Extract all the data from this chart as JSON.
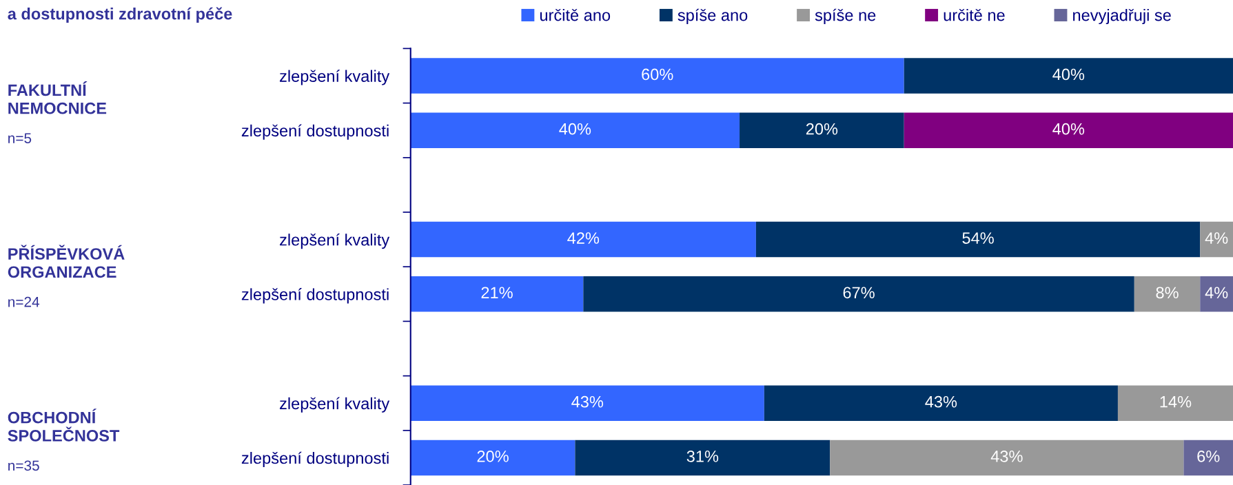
{
  "chart_data": {
    "type": "bar",
    "orientation": "horizontal",
    "stacked": true,
    "legend": "top",
    "grid": false,
    "title": "a dostupnosti zdravotní péče",
    "categories": [
      "zlepšení kvality",
      "zlepšení dostupnosti",
      null,
      "zlepšení kvality",
      "zlepšení dostupnosti",
      null,
      "zlepšení kvality",
      "zlepšení dostupnosti"
    ],
    "series": [
      {
        "name": "určitě ano",
        "color": "#3366ff",
        "values": [
          60,
          40,
          null,
          42,
          21,
          null,
          43,
          20
        ],
        "value_labels": [
          "60%",
          "40%",
          null,
          "42%",
          "21%",
          null,
          "43%",
          "20%"
        ]
      },
      {
        "name": "spíše ano",
        "color": "#003366",
        "values": [
          40,
          20,
          null,
          54,
          67,
          null,
          43,
          31
        ],
        "value_labels": [
          "40%",
          "20%",
          null,
          "54%",
          "67%",
          null,
          "43%",
          "31%"
        ]
      },
      {
        "name": "spíše ne",
        "color": "#999999",
        "values": [
          null,
          null,
          null,
          4,
          8,
          null,
          14,
          43
        ],
        "value_labels": [
          null,
          null,
          null,
          "4%",
          "8%",
          null,
          "14%",
          "43%"
        ]
      },
      {
        "name": "určitě ne",
        "color": "#800080",
        "values": [
          null,
          40,
          null,
          null,
          null,
          null,
          null,
          null
        ],
        "value_labels": [
          null,
          "40%",
          null,
          null,
          null,
          null,
          null,
          null
        ]
      },
      {
        "name": "nevyjadřuji se",
        "color": "#666699",
        "values": [
          null,
          null,
          null,
          null,
          4,
          null,
          null,
          6
        ],
        "value_labels": [
          null,
          null,
          null,
          null,
          "4%",
          null,
          null,
          "6%"
        ]
      }
    ],
    "annotations": [
      "FAKULTNÍ\nNEMOCNICE",
      "n=5",
      "PŘÍSPĚVKOVÁ\nORGANIZACE",
      "n=24",
      "OBCHODNÍ\nSPOLEČNOST",
      "n=35"
    ]
  }
}
